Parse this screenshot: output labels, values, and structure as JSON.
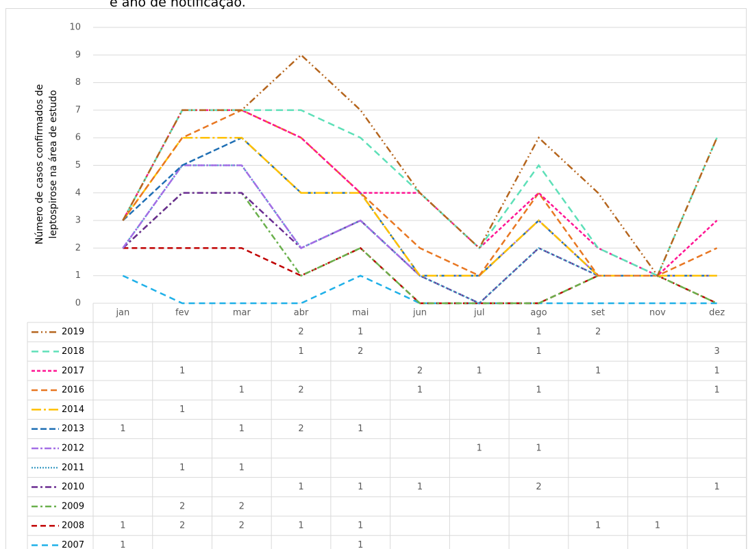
{
  "chart_data": {
    "type": "line",
    "stacked": true,
    "title": "e ano de notificação.",
    "ylabel": [
      "Número de casos confirmados de",
      "leptospirose na área de estudo"
    ],
    "categories": [
      "jan",
      "fev",
      "mar",
      "abr",
      "mai",
      "jun",
      "jul",
      "ago",
      "set",
      "nov",
      "dez"
    ],
    "ylim": [
      0,
      10
    ],
    "yticks": [
      0,
      1,
      2,
      3,
      4,
      5,
      6,
      7,
      8,
      9,
      10
    ],
    "grid": true,
    "series": [
      {
        "name": "2019",
        "color": "#b5651d",
        "dash": "10 4 2 4 2 4",
        "values": [
          0,
          0,
          0,
          2,
          1,
          0,
          0,
          1,
          2,
          0,
          0
        ]
      },
      {
        "name": "2018",
        "color": "#5ee0b8",
        "dash": "10 6",
        "values": [
          0,
          0,
          0,
          1,
          2,
          0,
          0,
          1,
          0,
          0,
          3
        ]
      },
      {
        "name": "2017",
        "color": "#ff1493",
        "dash": "5 3",
        "values": [
          0,
          1,
          0,
          0,
          0,
          2,
          1,
          0,
          1,
          0,
          1
        ]
      },
      {
        "name": "2016",
        "color": "#e87722",
        "dash": "9 5",
        "values": [
          0,
          0,
          1,
          2,
          0,
          1,
          0,
          1,
          0,
          0,
          1
        ]
      },
      {
        "name": "2014",
        "color": "#ffc000",
        "dash": "14 4 3 4",
        "values": [
          0,
          1,
          0,
          0,
          0,
          0,
          0,
          0,
          0,
          0,
          0
        ]
      },
      {
        "name": "2013",
        "color": "#1f6fb4",
        "dash": "9 4",
        "values": [
          1,
          0,
          1,
          2,
          1,
          0,
          0,
          0,
          0,
          0,
          0
        ]
      },
      {
        "name": "2012",
        "color": "#a36ee6",
        "dash": "10 3 3 3",
        "values": [
          0,
          0,
          0,
          0,
          0,
          0,
          1,
          1,
          0,
          0,
          0
        ]
      },
      {
        "name": "2011",
        "color": "#4aa3c8",
        "dash": "2 2",
        "values": [
          0,
          1,
          1,
          0,
          0,
          0,
          0,
          0,
          0,
          0,
          0
        ]
      },
      {
        "name": "2010",
        "color": "#6a2c91",
        "dash": "9 4 3 4",
        "values": [
          0,
          0,
          0,
          1,
          1,
          1,
          0,
          2,
          0,
          0,
          1
        ]
      },
      {
        "name": "2009",
        "color": "#6ab04c",
        "dash": "9 4 3 4",
        "values": [
          0,
          2,
          2,
          0,
          0,
          0,
          0,
          0,
          0,
          0,
          0
        ]
      },
      {
        "name": "2008",
        "color": "#c00000",
        "dash": "8 5",
        "values": [
          1,
          2,
          2,
          1,
          1,
          0,
          0,
          0,
          1,
          1,
          0
        ]
      },
      {
        "name": "2007",
        "color": "#1fb0e8",
        "dash": "9 6",
        "values": [
          1,
          0,
          0,
          0,
          1,
          0,
          0,
          0,
          0,
          0,
          0
        ]
      }
    ]
  }
}
